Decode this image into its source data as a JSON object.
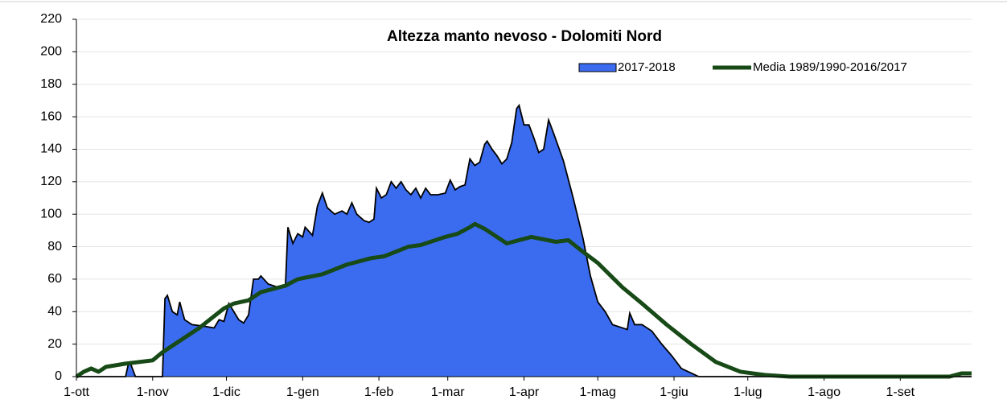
{
  "chart_data": {
    "type": "area-line",
    "title": "Altezza manto nevoso - Dolomiti Nord",
    "xlim": [
      0,
      364
    ],
    "xticks": [
      {
        "value": 0,
        "label": "1-ott"
      },
      {
        "value": 31,
        "label": "1-nov"
      },
      {
        "value": 61,
        "label": "1-dic"
      },
      {
        "value": 92,
        "label": "1-gen"
      },
      {
        "value": 123,
        "label": "1-feb"
      },
      {
        "value": 151,
        "label": "1-mar"
      },
      {
        "value": 182,
        "label": "1-apr"
      },
      {
        "value": 212,
        "label": "1-mag"
      },
      {
        "value": 243,
        "label": "1-giu"
      },
      {
        "value": 273,
        "label": "1-lug"
      },
      {
        "value": 304,
        "label": "1-ago"
      },
      {
        "value": 335,
        "label": "1-set"
      }
    ],
    "ylim": [
      0,
      220
    ],
    "yticks": [
      0,
      20,
      40,
      60,
      80,
      100,
      120,
      140,
      160,
      180,
      200,
      220
    ],
    "grid": true,
    "legend": "top-right",
    "series": [
      {
        "name": "2017-2018",
        "kind": "area",
        "color": "#3b6cf0",
        "x": [
          0,
          20,
          21,
          22,
          24,
          35,
          36,
          37,
          39,
          41,
          42,
          44,
          47,
          52,
          56,
          58,
          60,
          62,
          64,
          66,
          68,
          70,
          72,
          74,
          75,
          78,
          82,
          85,
          86,
          88,
          90,
          92,
          93,
          96,
          98,
          100,
          102,
          105,
          108,
          110,
          112,
          114,
          117,
          119,
          121,
          122,
          124,
          126,
          128,
          130,
          132,
          134,
          136,
          138,
          140,
          142,
          144,
          147,
          150,
          152,
          154,
          156,
          158,
          160,
          162,
          164,
          166,
          167,
          169,
          171,
          173,
          175,
          177,
          179,
          180,
          182,
          184,
          186,
          188,
          190,
          192,
          194,
          198,
          202,
          206,
          209,
          212,
          215,
          218,
          222,
          224,
          225,
          227,
          230,
          234,
          238,
          242,
          246,
          253,
          364
        ],
        "values": [
          0,
          0,
          7,
          8,
          0,
          0,
          48,
          50,
          40,
          38,
          46,
          35,
          32,
          31,
          30,
          35,
          34,
          45,
          40,
          35,
          33,
          38,
          60,
          60,
          62,
          57,
          55,
          56,
          92,
          82,
          88,
          86,
          92,
          87,
          105,
          113,
          104,
          100,
          102,
          100,
          107,
          100,
          96,
          95,
          97,
          116,
          110,
          112,
          120,
          116,
          120,
          115,
          112,
          116,
          110,
          116,
          112,
          112,
          113,
          121,
          115,
          117,
          118,
          134,
          130,
          132,
          143,
          145,
          140,
          136,
          131,
          134,
          144,
          165,
          167,
          155,
          155,
          147,
          138,
          140,
          158,
          150,
          133,
          110,
          85,
          62,
          46,
          40,
          32,
          30,
          29,
          39,
          32,
          32,
          28,
          20,
          13,
          5,
          0,
          0
        ]
      },
      {
        "name": "Media 1989/1990-2016/2017",
        "kind": "line",
        "color": "#174a17",
        "x": [
          0,
          3,
          6,
          9,
          12,
          20,
          31,
          35,
          40,
          50,
          60,
          64,
          70,
          75,
          85,
          90,
          100,
          110,
          120,
          125,
          135,
          140,
          150,
          155,
          160,
          162,
          166,
          175,
          180,
          185,
          195,
          200,
          205,
          212,
          222,
          230,
          240,
          250,
          260,
          270,
          280,
          290,
          355,
          360,
          364
        ],
        "values": [
          0,
          3,
          5,
          3,
          6,
          8,
          10,
          15,
          20,
          30,
          42,
          45,
          47,
          52,
          56,
          60,
          63,
          69,
          73,
          74,
          80,
          81,
          86,
          88,
          92,
          94,
          91,
          82,
          84,
          86,
          83,
          84,
          78,
          70,
          55,
          45,
          32,
          20,
          9,
          3,
          1,
          0,
          0,
          2,
          2
        ]
      }
    ]
  }
}
